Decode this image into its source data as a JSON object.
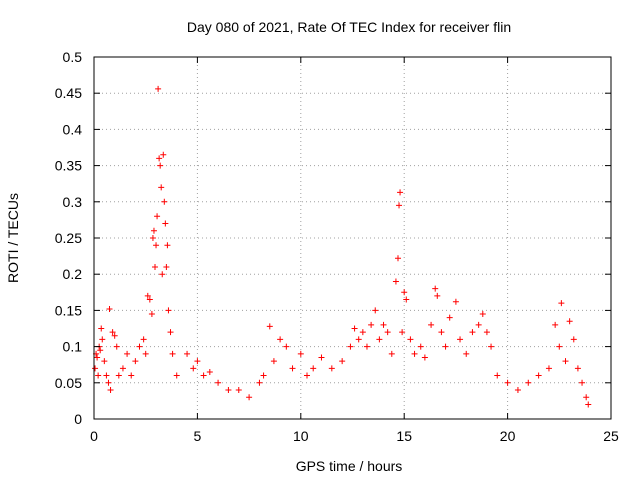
{
  "chart_data": {
    "type": "scatter",
    "title": "Day 080 of 2021, Rate Of TEC Index for receiver flin",
    "xlabel": "GPS time / hours",
    "ylabel": "ROTI / TECUs",
    "xlim": [
      0,
      25
    ],
    "ylim": [
      0,
      0.5
    ],
    "x_ticks": [
      0,
      5,
      10,
      15,
      20,
      25
    ],
    "y_ticks": [
      0,
      0.05,
      0.1,
      0.15,
      0.2,
      0.25,
      0.3,
      0.35,
      0.4,
      0.45,
      0.5
    ],
    "grid": true,
    "marker": "plus",
    "series": [
      {
        "color": "#ff0000",
        "points": [
          [
            0.05,
            0.07
          ],
          [
            0.1,
            0.09
          ],
          [
            0.15,
            0.085
          ],
          [
            0.2,
            0.06
          ],
          [
            0.25,
            0.1
          ],
          [
            0.3,
            0.095
          ],
          [
            0.35,
            0.125
          ],
          [
            0.4,
            0.11
          ],
          [
            0.5,
            0.08
          ],
          [
            0.6,
            0.06
          ],
          [
            0.7,
            0.05
          ],
          [
            0.75,
            0.152
          ],
          [
            0.8,
            0.04
          ],
          [
            0.9,
            0.12
          ],
          [
            1.0,
            0.115
          ],
          [
            1.1,
            0.1
          ],
          [
            1.2,
            0.06
          ],
          [
            1.4,
            0.07
          ],
          [
            1.6,
            0.09
          ],
          [
            1.8,
            0.06
          ],
          [
            2.0,
            0.08
          ],
          [
            2.2,
            0.1
          ],
          [
            2.4,
            0.11
          ],
          [
            2.5,
            0.09
          ],
          [
            2.6,
            0.17
          ],
          [
            2.7,
            0.165
          ],
          [
            2.8,
            0.145
          ],
          [
            2.85,
            0.25
          ],
          [
            2.9,
            0.26
          ],
          [
            2.95,
            0.21
          ],
          [
            3.0,
            0.24
          ],
          [
            3.05,
            0.28
          ],
          [
            3.1,
            0.456
          ],
          [
            3.15,
            0.36
          ],
          [
            3.2,
            0.35
          ],
          [
            3.25,
            0.32
          ],
          [
            3.3,
            0.2
          ],
          [
            3.35,
            0.365
          ],
          [
            3.4,
            0.3
          ],
          [
            3.45,
            0.27
          ],
          [
            3.5,
            0.21
          ],
          [
            3.55,
            0.24
          ],
          [
            3.6,
            0.15
          ],
          [
            3.7,
            0.12
          ],
          [
            3.8,
            0.09
          ],
          [
            4.0,
            0.06
          ],
          [
            4.5,
            0.09
          ],
          [
            4.8,
            0.07
          ],
          [
            5.0,
            0.08
          ],
          [
            5.3,
            0.06
          ],
          [
            5.6,
            0.065
          ],
          [
            6.0,
            0.05
          ],
          [
            6.5,
            0.04
          ],
          [
            7.0,
            0.04
          ],
          [
            7.5,
            0.03
          ],
          [
            8.0,
            0.05
          ],
          [
            8.2,
            0.06
          ],
          [
            8.5,
            0.128
          ],
          [
            8.7,
            0.08
          ],
          [
            9.0,
            0.11
          ],
          [
            9.3,
            0.1
          ],
          [
            9.6,
            0.07
          ],
          [
            10.0,
            0.09
          ],
          [
            10.3,
            0.06
          ],
          [
            10.6,
            0.07
          ],
          [
            11.0,
            0.085
          ],
          [
            11.5,
            0.07
          ],
          [
            12.0,
            0.08
          ],
          [
            12.4,
            0.1
          ],
          [
            12.6,
            0.125
          ],
          [
            12.8,
            0.11
          ],
          [
            13.0,
            0.12
          ],
          [
            13.2,
            0.1
          ],
          [
            13.4,
            0.13
          ],
          [
            13.6,
            0.15
          ],
          [
            13.8,
            0.11
          ],
          [
            14.0,
            0.13
          ],
          [
            14.2,
            0.12
          ],
          [
            14.4,
            0.09
          ],
          [
            14.6,
            0.19
          ],
          [
            14.7,
            0.222
          ],
          [
            14.75,
            0.295
          ],
          [
            14.8,
            0.313
          ],
          [
            14.9,
            0.12
          ],
          [
            15.0,
            0.175
          ],
          [
            15.1,
            0.165
          ],
          [
            15.3,
            0.11
          ],
          [
            15.5,
            0.09
          ],
          [
            15.8,
            0.1
          ],
          [
            16.0,
            0.085
          ],
          [
            16.3,
            0.13
          ],
          [
            16.5,
            0.18
          ],
          [
            16.6,
            0.17
          ],
          [
            16.8,
            0.12
          ],
          [
            17.0,
            0.1
          ],
          [
            17.2,
            0.14
          ],
          [
            17.5,
            0.162
          ],
          [
            17.7,
            0.11
          ],
          [
            18.0,
            0.09
          ],
          [
            18.3,
            0.12
          ],
          [
            18.6,
            0.13
          ],
          [
            18.8,
            0.145
          ],
          [
            19.0,
            0.12
          ],
          [
            19.2,
            0.1
          ],
          [
            19.5,
            0.06
          ],
          [
            20.0,
            0.05
          ],
          [
            20.5,
            0.04
          ],
          [
            21.0,
            0.05
          ],
          [
            21.5,
            0.06
          ],
          [
            22.0,
            0.07
          ],
          [
            22.3,
            0.13
          ],
          [
            22.5,
            0.1
          ],
          [
            22.6,
            0.16
          ],
          [
            22.8,
            0.08
          ],
          [
            23.0,
            0.135
          ],
          [
            23.2,
            0.11
          ],
          [
            23.4,
            0.07
          ],
          [
            23.6,
            0.05
          ],
          [
            23.8,
            0.03
          ],
          [
            23.9,
            0.02
          ]
        ]
      }
    ]
  }
}
